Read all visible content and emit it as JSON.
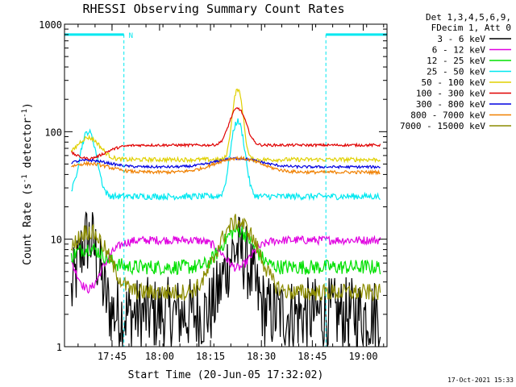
{
  "chart_data": {
    "type": "line",
    "title": "RHESSI Observing Summary Count Rates",
    "xlabel": "Start Time (20-Jun-05 17:32:02)",
    "ylabel_main": "Count Rate (s",
    "ylabel_sup1": "-1",
    "ylabel_mid": " detector",
    "ylabel_sup2": "-1",
    "ylabel_end": ")",
    "yscale": "log",
    "xlim_min": [
      0,
      95
    ],
    "ylim": [
      1,
      1000
    ],
    "x_ticks": [
      {
        "min": 14.0,
        "label": "17:45"
      },
      {
        "min": 28.0,
        "label": "18:00"
      },
      {
        "min": 43.0,
        "label": "18:15"
      },
      {
        "min": 58.0,
        "label": "18:30"
      },
      {
        "min": 73.0,
        "label": "18:45"
      },
      {
        "min": 88.0,
        "label": "19:00"
      }
    ],
    "y_ticks": [
      {
        "value": 1,
        "label": "1"
      },
      {
        "value": 10,
        "label": "10"
      },
      {
        "value": 100,
        "label": "100"
      },
      {
        "value": 1000,
        "label": "1000"
      }
    ],
    "legend_header_1": "Det 1,3,4,5,6,9,",
    "legend_header_2": "FDecim 1, Att 0",
    "legend_position": "right",
    "timestamp": "17-Oct-2021 15:33",
    "night_label": "N",
    "night_intervals": [
      [
        0,
        17.5
      ],
      [
        77,
        95
      ]
    ],
    "night_bar_level": 800,
    "series": [
      {
        "name": "3 - 6 keV",
        "color": "#000000",
        "base": 2.0,
        "peaks": [
          [
            7,
            5,
            3.5
          ],
          [
            51,
            4,
            4.5
          ]
        ],
        "noise": 0.35
      },
      {
        "name": "6 - 12 keV",
        "color": "#e000e0",
        "base": 9.8,
        "peaks": [
          [
            7,
            0.35,
            7
          ],
          [
            51,
            0.55,
            6
          ]
        ],
        "noise": 0.04
      },
      {
        "name": "12 - 25 keV",
        "color": "#00e000",
        "base": 5.5,
        "peaks": [
          [
            7,
            1.5,
            6
          ],
          [
            51,
            2.2,
            5.5
          ]
        ],
        "noise": 0.07
      },
      {
        "name": "25 - 50 keV",
        "color": "#00e8f0",
        "base": 25,
        "peaks": [
          [
            7,
            4,
            2.8
          ],
          [
            51,
            5,
            2.3
          ]
        ],
        "noise": 0.03
      },
      {
        "name": "50 - 100 keV",
        "color": "#e0d000",
        "base": 55,
        "peaks": [
          [
            7,
            1.6,
            4.5
          ],
          [
            51,
            4.5,
            1.8
          ]
        ],
        "noise": 0.02
      },
      {
        "name": "100 - 300 keV",
        "color": "#e00000",
        "base": 75,
        "peaks": [
          [
            7,
            0.75,
            7
          ],
          [
            51,
            2.2,
            3
          ]
        ],
        "noise": 0.012
      },
      {
        "name": "300 - 800 keV",
        "color": "#0000e0",
        "base": 47,
        "peaks": [
          [
            7,
            1.15,
            8
          ],
          [
            51,
            1.2,
            9
          ]
        ],
        "noise": 0.012
      },
      {
        "name": "800 - 7000 keV",
        "color": "#f08000",
        "base": 42,
        "peaks": [
          [
            7,
            1.2,
            8
          ],
          [
            51,
            1.35,
            9
          ]
        ],
        "noise": 0.015
      },
      {
        "name": "7000 - 15000 keV",
        "color": "#8c8c00",
        "base": 3.2,
        "peaks": [
          [
            7,
            3.7,
            6.5
          ],
          [
            51,
            4.5,
            6.5
          ]
        ],
        "noise": 0.08
      }
    ]
  }
}
